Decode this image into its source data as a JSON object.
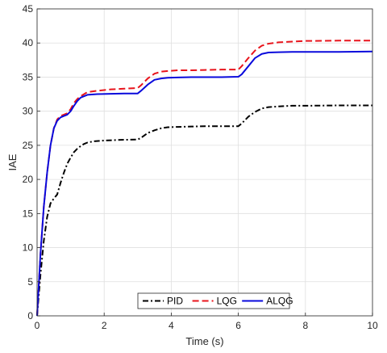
{
  "chart_data": {
    "type": "line",
    "xlabel": "Time (s)",
    "ylabel": "IAE",
    "xlim": [
      0,
      10
    ],
    "ylim": [
      0,
      45
    ],
    "xticks": [
      0,
      2,
      4,
      6,
      8,
      10
    ],
    "yticks": [
      0,
      5,
      10,
      15,
      20,
      25,
      30,
      35,
      40,
      45
    ],
    "grid": true,
    "legend_position": "bottom-center",
    "series": [
      {
        "name": "PID",
        "color": "#000000",
        "style": "dashdot",
        "x": [
          0,
          0.1,
          0.2,
          0.3,
          0.4,
          0.5,
          0.6,
          0.7,
          0.8,
          0.9,
          1.0,
          1.1,
          1.2,
          1.3,
          1.4,
          1.5,
          1.7,
          2.0,
          2.5,
          3.0,
          3.1,
          3.3,
          3.5,
          3.7,
          3.9,
          4.2,
          4.6,
          5.0,
          5.5,
          6.0,
          6.1,
          6.3,
          6.5,
          6.7,
          6.9,
          7.2,
          7.6,
          8.0,
          9.0,
          10.0
        ],
        "y": [
          0,
          6,
          11,
          14.5,
          16.5,
          17.2,
          17.8,
          19.5,
          21.0,
          22.3,
          23.2,
          24.0,
          24.5,
          24.9,
          25.2,
          25.4,
          25.6,
          25.7,
          25.8,
          25.85,
          26.1,
          26.8,
          27.2,
          27.5,
          27.65,
          27.7,
          27.75,
          27.8,
          27.8,
          27.8,
          28.2,
          29.2,
          29.9,
          30.4,
          30.6,
          30.7,
          30.8,
          30.8,
          30.85,
          30.85
        ]
      },
      {
        "name": "LQG",
        "color": "#e8141c",
        "style": "dashed",
        "x": [
          0,
          0.1,
          0.2,
          0.3,
          0.4,
          0.5,
          0.6,
          0.7,
          0.8,
          0.9,
          1.0,
          1.1,
          1.2,
          1.3,
          1.5,
          1.8,
          2.2,
          2.6,
          3.0,
          3.1,
          3.3,
          3.5,
          3.7,
          3.9,
          4.2,
          4.6,
          5.0,
          5.5,
          6.0,
          6.1,
          6.3,
          6.5,
          6.7,
          6.9,
          7.2,
          7.6,
          8.0,
          9.0,
          10.0
        ],
        "y": [
          0,
          9,
          16,
          21,
          25,
          27.5,
          28.8,
          29.3,
          29.5,
          29.7,
          30.3,
          31.2,
          31.8,
          32.2,
          32.8,
          33.0,
          33.2,
          33.3,
          33.4,
          33.8,
          34.8,
          35.5,
          35.8,
          35.9,
          36.0,
          36.0,
          36.05,
          36.1,
          36.1,
          36.6,
          37.8,
          38.9,
          39.6,
          39.9,
          40.1,
          40.2,
          40.3,
          40.35,
          40.35
        ]
      },
      {
        "name": "ALQG",
        "color": "#0a0adc",
        "style": "solid",
        "x": [
          0,
          0.1,
          0.2,
          0.3,
          0.4,
          0.5,
          0.6,
          0.7,
          0.8,
          0.9,
          1.0,
          1.1,
          1.2,
          1.3,
          1.5,
          1.8,
          2.2,
          2.6,
          3.0,
          3.1,
          3.3,
          3.5,
          3.7,
          3.9,
          4.2,
          4.6,
          5.0,
          5.5,
          6.0,
          6.1,
          6.3,
          6.5,
          6.7,
          6.9,
          7.2,
          7.6,
          8.0,
          9.0,
          10.0
        ],
        "y": [
          0,
          9,
          16,
          21,
          25,
          27.5,
          28.6,
          29.1,
          29.3,
          29.5,
          30.0,
          30.8,
          31.5,
          32.0,
          32.4,
          32.5,
          32.55,
          32.6,
          32.6,
          33.0,
          33.9,
          34.6,
          34.8,
          34.9,
          34.95,
          35.0,
          35.0,
          35.0,
          35.05,
          35.4,
          36.6,
          37.8,
          38.4,
          38.6,
          38.65,
          38.7,
          38.7,
          38.7,
          38.75
        ]
      }
    ]
  }
}
